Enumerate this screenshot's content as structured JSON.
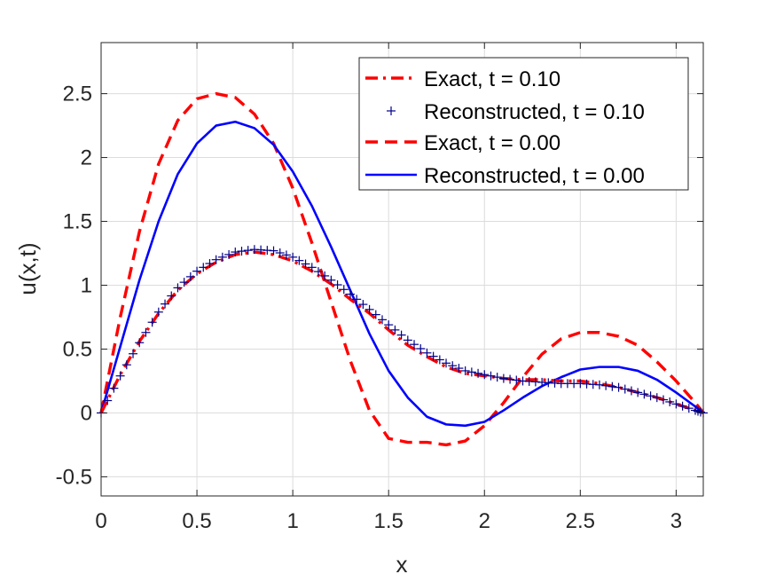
{
  "chart_data": {
    "type": "line",
    "title": "",
    "xlabel": "x",
    "ylabel": "u(x,t)",
    "xlim": [
      0,
      3.14159
    ],
    "ylim": [
      -0.65,
      2.9
    ],
    "xticks": [
      0,
      0.5,
      1,
      1.5,
      2,
      2.5,
      3
    ],
    "xtick_labels": [
      "0",
      "0.5",
      "1",
      "1.5",
      "2",
      "2.5",
      "3"
    ],
    "yticks": [
      -0.5,
      0,
      0.5,
      1,
      1.5,
      2,
      2.5
    ],
    "ytick_labels": [
      "-0.5",
      "0",
      "0.5",
      "1",
      "1.5",
      "2",
      "2.5"
    ],
    "grid": true,
    "legend_position": "top-right",
    "series": [
      {
        "name": "Exact, t = 0.10",
        "style": "dash-dot",
        "color": "#ff0000",
        "x": [
          0,
          0.1,
          0.2,
          0.3,
          0.4,
          0.5,
          0.6,
          0.7,
          0.8,
          0.9,
          1.0,
          1.1,
          1.2,
          1.3,
          1.4,
          1.5,
          1.6,
          1.7,
          1.8,
          1.9,
          2.0,
          2.1,
          2.2,
          2.3,
          2.4,
          2.5,
          2.6,
          2.7,
          2.8,
          2.9,
          3.0,
          3.1,
          3.14159
        ],
        "y": [
          0,
          0.3,
          0.56,
          0.78,
          0.96,
          1.09,
          1.18,
          1.24,
          1.26,
          1.24,
          1.19,
          1.11,
          1.01,
          0.89,
          0.78,
          0.65,
          0.53,
          0.44,
          0.36,
          0.31,
          0.29,
          0.27,
          0.26,
          0.26,
          0.25,
          0.25,
          0.23,
          0.2,
          0.16,
          0.12,
          0.07,
          0.02,
          0
        ]
      },
      {
        "name": "Reconstructed, t = 0.10",
        "style": "plus-markers",
        "color": "#00008b",
        "x": [
          0,
          0.1,
          0.2,
          0.3,
          0.4,
          0.5,
          0.6,
          0.7,
          0.8,
          0.9,
          1.0,
          1.1,
          1.2,
          1.3,
          1.4,
          1.5,
          1.6,
          1.7,
          1.8,
          1.9,
          2.0,
          2.1,
          2.2,
          2.3,
          2.4,
          2.5,
          2.6,
          2.7,
          2.8,
          2.9,
          3.0,
          3.1,
          3.14159
        ],
        "y": [
          0,
          0.29,
          0.55,
          0.79,
          0.98,
          1.11,
          1.2,
          1.26,
          1.28,
          1.27,
          1.22,
          1.14,
          1.04,
          0.93,
          0.81,
          0.69,
          0.57,
          0.47,
          0.39,
          0.33,
          0.3,
          0.27,
          0.25,
          0.24,
          0.23,
          0.23,
          0.22,
          0.2,
          0.16,
          0.12,
          0.07,
          0.02,
          0
        ]
      },
      {
        "name": "Exact, t = 0.00",
        "style": "dashed",
        "color": "#ff0000",
        "x": [
          0,
          0.1,
          0.2,
          0.3,
          0.4,
          0.5,
          0.6,
          0.7,
          0.8,
          0.9,
          1.0,
          1.1,
          1.2,
          1.3,
          1.4,
          1.5,
          1.6,
          1.7,
          1.8,
          1.9,
          2.0,
          2.1,
          2.2,
          2.3,
          2.4,
          2.5,
          2.6,
          2.7,
          2.8,
          2.9,
          3.0,
          3.1,
          3.14159
        ],
        "y": [
          0,
          0.75,
          1.42,
          1.95,
          2.29,
          2.46,
          2.5,
          2.47,
          2.34,
          2.11,
          1.76,
          1.33,
          0.87,
          0.41,
          0.02,
          -0.2,
          -0.23,
          -0.23,
          -0.25,
          -0.22,
          -0.1,
          0.08,
          0.28,
          0.46,
          0.58,
          0.63,
          0.63,
          0.6,
          0.53,
          0.4,
          0.25,
          0.08,
          0
        ]
      },
      {
        "name": "Reconstructed, t = 0.00",
        "style": "solid",
        "color": "#0000ff",
        "x": [
          0,
          0.1,
          0.2,
          0.3,
          0.4,
          0.5,
          0.6,
          0.7,
          0.8,
          0.9,
          1.0,
          1.1,
          1.2,
          1.3,
          1.4,
          1.5,
          1.6,
          1.7,
          1.8,
          1.9,
          2.0,
          2.1,
          2.2,
          2.3,
          2.4,
          2.5,
          2.6,
          2.7,
          2.8,
          2.9,
          3.0,
          3.1,
          3.14159
        ],
        "y": [
          0,
          0.52,
          1.04,
          1.5,
          1.87,
          2.11,
          2.25,
          2.28,
          2.23,
          2.1,
          1.89,
          1.62,
          1.3,
          0.96,
          0.62,
          0.33,
          0.12,
          -0.03,
          -0.09,
          -0.1,
          -0.07,
          0.02,
          0.12,
          0.21,
          0.28,
          0.34,
          0.36,
          0.36,
          0.33,
          0.26,
          0.16,
          0.05,
          0
        ]
      }
    ]
  }
}
